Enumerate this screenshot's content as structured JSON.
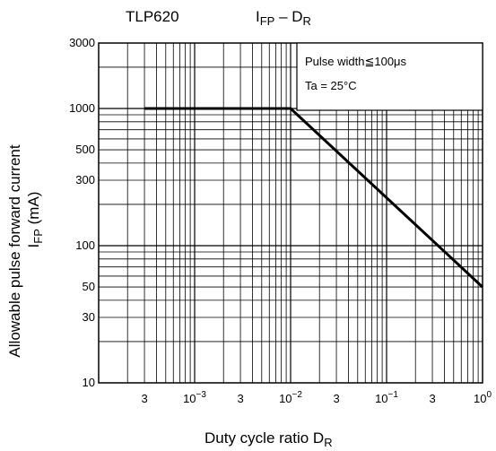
{
  "chart_data": {
    "type": "line",
    "title_left": "TLP620",
    "title_main": "I",
    "title_main_sub": "FP",
    "title_dash": " – D",
    "title_dash_sub": "R",
    "xlabel": "Duty cycle ratio   D",
    "xlabel_sub": "R",
    "ylabel_line1": "Allowable pulse forward current",
    "ylabel_line2": "I",
    "ylabel_line2_sub": "FP",
    "ylabel_line2_rest": " (mA)",
    "x_scale": "log",
    "y_scale": "log",
    "xlim": [
      0.001,
      1
    ],
    "ylim": [
      10,
      3000
    ],
    "grid": true,
    "x_tick_labels": [
      {
        "value": 0.0003,
        "label": "3"
      },
      {
        "value": 0.001,
        "label": "10",
        "exp": "−3"
      },
      {
        "value": 0.003,
        "label": "3"
      },
      {
        "value": 0.01,
        "label": "10",
        "exp": "−2"
      },
      {
        "value": 0.03,
        "label": "3"
      },
      {
        "value": 0.1,
        "label": "10",
        "exp": "−1"
      },
      {
        "value": 0.3,
        "label": "3"
      },
      {
        "value": 1,
        "label": "10",
        "exp": "0"
      }
    ],
    "y_tick_labels": [
      {
        "value": 10,
        "label": "10"
      },
      {
        "value": 30,
        "label": "30"
      },
      {
        "value": 50,
        "label": "50"
      },
      {
        "value": 100,
        "label": "100"
      },
      {
        "value": 300,
        "label": "300"
      },
      {
        "value": 500,
        "label": "500"
      },
      {
        "value": 1000,
        "label": "1000"
      },
      {
        "value": 3000,
        "label": "3000"
      }
    ],
    "annotation": {
      "line1": "Pulse width≦100μs",
      "line2": "Ta = 25°C"
    },
    "series": [
      {
        "points": [
          {
            "x": 0.0003,
            "y": 1000
          },
          {
            "x": 0.01,
            "y": 1000
          },
          {
            "x": 1,
            "y": 50
          }
        ]
      }
    ]
  }
}
